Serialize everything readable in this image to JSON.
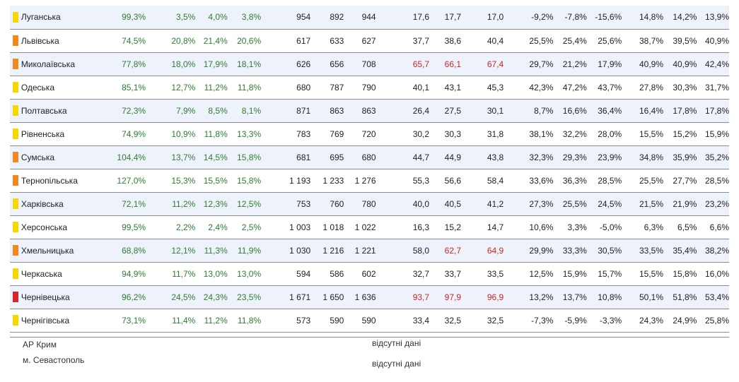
{
  "colors": {
    "yellow": "#f5d800",
    "orange": "#ef8a22",
    "red": "#d8232a"
  },
  "rows": [
    {
      "region": "Луганська",
      "ind": "yellow",
      "c": [
        {
          "v": "99,3%",
          "t": "g"
        },
        {
          "v": "3,5%",
          "t": "g"
        },
        {
          "v": "4,0%",
          "t": "g"
        },
        {
          "v": "3,8%",
          "t": "g"
        },
        {
          "v": "954",
          "t": "k"
        },
        {
          "v": "892",
          "t": "k"
        },
        {
          "v": "944",
          "t": "k"
        },
        {
          "v": "17,6",
          "t": "k"
        },
        {
          "v": "17,7",
          "t": "k"
        },
        {
          "v": "17,0",
          "t": "k"
        },
        {
          "v": "-9,2%",
          "t": "k"
        },
        {
          "v": "-7,8%",
          "t": "k"
        },
        {
          "v": "-15,6%",
          "t": "k"
        },
        {
          "v": "14,8%",
          "t": "k"
        },
        {
          "v": "14,2%",
          "t": "k"
        },
        {
          "v": "13,9%",
          "t": "k"
        }
      ]
    },
    {
      "region": "Львівська",
      "ind": "orange",
      "c": [
        {
          "v": "74,5%",
          "t": "g"
        },
        {
          "v": "20,8%",
          "t": "g"
        },
        {
          "v": "21,4%",
          "t": "g"
        },
        {
          "v": "20,6%",
          "t": "g"
        },
        {
          "v": "617",
          "t": "k"
        },
        {
          "v": "633",
          "t": "k"
        },
        {
          "v": "627",
          "t": "k"
        },
        {
          "v": "37,7",
          "t": "k"
        },
        {
          "v": "38,6",
          "t": "k"
        },
        {
          "v": "40,4",
          "t": "k"
        },
        {
          "v": "25,5%",
          "t": "k"
        },
        {
          "v": "25,4%",
          "t": "k"
        },
        {
          "v": "25,6%",
          "t": "k"
        },
        {
          "v": "38,7%",
          "t": "k"
        },
        {
          "v": "39,5%",
          "t": "k"
        },
        {
          "v": "40,9%",
          "t": "k"
        }
      ]
    },
    {
      "region": "Миколаївська",
      "ind": "orange",
      "c": [
        {
          "v": "77,8%",
          "t": "g"
        },
        {
          "v": "18,0%",
          "t": "g"
        },
        {
          "v": "17,9%",
          "t": "g"
        },
        {
          "v": "18,1%",
          "t": "g"
        },
        {
          "v": "626",
          "t": "k"
        },
        {
          "v": "656",
          "t": "k"
        },
        {
          "v": "708",
          "t": "k"
        },
        {
          "v": "65,7",
          "t": "r"
        },
        {
          "v": "66,1",
          "t": "r"
        },
        {
          "v": "67,4",
          "t": "r"
        },
        {
          "v": "29,7%",
          "t": "k"
        },
        {
          "v": "21,2%",
          "t": "k"
        },
        {
          "v": "17,9%",
          "t": "k"
        },
        {
          "v": "40,9%",
          "t": "k"
        },
        {
          "v": "40,9%",
          "t": "k"
        },
        {
          "v": "42,4%",
          "t": "k"
        }
      ]
    },
    {
      "region": "Одеська",
      "ind": "yellow",
      "c": [
        {
          "v": "85,1%",
          "t": "g"
        },
        {
          "v": "12,7%",
          "t": "g"
        },
        {
          "v": "11,2%",
          "t": "g"
        },
        {
          "v": "11,8%",
          "t": "g"
        },
        {
          "v": "680",
          "t": "k"
        },
        {
          "v": "787",
          "t": "k"
        },
        {
          "v": "790",
          "t": "k"
        },
        {
          "v": "40,1",
          "t": "k"
        },
        {
          "v": "43,1",
          "t": "k"
        },
        {
          "v": "45,3",
          "t": "k"
        },
        {
          "v": "42,3%",
          "t": "k"
        },
        {
          "v": "47,2%",
          "t": "k"
        },
        {
          "v": "43,7%",
          "t": "k"
        },
        {
          "v": "27,8%",
          "t": "k"
        },
        {
          "v": "30,3%",
          "t": "k"
        },
        {
          "v": "31,7%",
          "t": "k"
        }
      ]
    },
    {
      "region": "Полтавська",
      "ind": "yellow",
      "c": [
        {
          "v": "72,3%",
          "t": "g"
        },
        {
          "v": "7,9%",
          "t": "g"
        },
        {
          "v": "8,5%",
          "t": "g"
        },
        {
          "v": "8,1%",
          "t": "g"
        },
        {
          "v": "871",
          "t": "k"
        },
        {
          "v": "863",
          "t": "k"
        },
        {
          "v": "863",
          "t": "k"
        },
        {
          "v": "26,4",
          "t": "k"
        },
        {
          "v": "27,5",
          "t": "k"
        },
        {
          "v": "30,1",
          "t": "k"
        },
        {
          "v": "8,7%",
          "t": "k"
        },
        {
          "v": "16,6%",
          "t": "k"
        },
        {
          "v": "36,4%",
          "t": "k"
        },
        {
          "v": "16,4%",
          "t": "k"
        },
        {
          "v": "17,8%",
          "t": "k"
        },
        {
          "v": "17,8%",
          "t": "k"
        }
      ]
    },
    {
      "region": "Рівненська",
      "ind": "yellow",
      "c": [
        {
          "v": "74,9%",
          "t": "g"
        },
        {
          "v": "10,9%",
          "t": "g"
        },
        {
          "v": "11,8%",
          "t": "g"
        },
        {
          "v": "13,3%",
          "t": "g"
        },
        {
          "v": "783",
          "t": "k"
        },
        {
          "v": "769",
          "t": "k"
        },
        {
          "v": "720",
          "t": "k"
        },
        {
          "v": "30,2",
          "t": "k"
        },
        {
          "v": "30,3",
          "t": "k"
        },
        {
          "v": "31,8",
          "t": "k"
        },
        {
          "v": "38,1%",
          "t": "k"
        },
        {
          "v": "32,2%",
          "t": "k"
        },
        {
          "v": "28,0%",
          "t": "k"
        },
        {
          "v": "15,5%",
          "t": "k"
        },
        {
          "v": "15,2%",
          "t": "k"
        },
        {
          "v": "15,9%",
          "t": "k"
        }
      ]
    },
    {
      "region": "Сумська",
      "ind": "orange",
      "c": [
        {
          "v": "104,4%",
          "t": "g"
        },
        {
          "v": "13,7%",
          "t": "g"
        },
        {
          "v": "14,5%",
          "t": "g"
        },
        {
          "v": "15,8%",
          "t": "g"
        },
        {
          "v": "681",
          "t": "k"
        },
        {
          "v": "695",
          "t": "k"
        },
        {
          "v": "680",
          "t": "k"
        },
        {
          "v": "44,7",
          "t": "k"
        },
        {
          "v": "44,9",
          "t": "k"
        },
        {
          "v": "43,8",
          "t": "k"
        },
        {
          "v": "32,3%",
          "t": "k"
        },
        {
          "v": "29,3%",
          "t": "k"
        },
        {
          "v": "23,9%",
          "t": "k"
        },
        {
          "v": "34,8%",
          "t": "k"
        },
        {
          "v": "35,9%",
          "t": "k"
        },
        {
          "v": "35,2%",
          "t": "k"
        }
      ]
    },
    {
      "region": "Тернопільська",
      "ind": "orange",
      "c": [
        {
          "v": "127,0%",
          "t": "g"
        },
        {
          "v": "15,3%",
          "t": "g"
        },
        {
          "v": "15,5%",
          "t": "g"
        },
        {
          "v": "15,8%",
          "t": "g"
        },
        {
          "v": "1 193",
          "t": "k"
        },
        {
          "v": "1 233",
          "t": "k"
        },
        {
          "v": "1 276",
          "t": "k"
        },
        {
          "v": "55,3",
          "t": "k"
        },
        {
          "v": "56,6",
          "t": "k"
        },
        {
          "v": "58,4",
          "t": "k"
        },
        {
          "v": "33,6%",
          "t": "k"
        },
        {
          "v": "36,3%",
          "t": "k"
        },
        {
          "v": "28,5%",
          "t": "k"
        },
        {
          "v": "25,5%",
          "t": "k"
        },
        {
          "v": "27,7%",
          "t": "k"
        },
        {
          "v": "28,5%",
          "t": "k"
        }
      ]
    },
    {
      "region": "Харківська",
      "ind": "yellow",
      "c": [
        {
          "v": "72,1%",
          "t": "g"
        },
        {
          "v": "11,2%",
          "t": "g"
        },
        {
          "v": "12,3%",
          "t": "g"
        },
        {
          "v": "12,5%",
          "t": "g"
        },
        {
          "v": "753",
          "t": "k"
        },
        {
          "v": "760",
          "t": "k"
        },
        {
          "v": "780",
          "t": "k"
        },
        {
          "v": "40,0",
          "t": "k"
        },
        {
          "v": "40,5",
          "t": "k"
        },
        {
          "v": "41,2",
          "t": "k"
        },
        {
          "v": "27,3%",
          "t": "k"
        },
        {
          "v": "25,5%",
          "t": "k"
        },
        {
          "v": "24,5%",
          "t": "k"
        },
        {
          "v": "21,5%",
          "t": "k"
        },
        {
          "v": "21,9%",
          "t": "k"
        },
        {
          "v": "23,2%",
          "t": "k"
        }
      ]
    },
    {
      "region": "Херсонська",
      "ind": "yellow",
      "c": [
        {
          "v": "99,5%",
          "t": "g"
        },
        {
          "v": "2,2%",
          "t": "g"
        },
        {
          "v": "2,4%",
          "t": "g"
        },
        {
          "v": "2,5%",
          "t": "g"
        },
        {
          "v": "1 003",
          "t": "k"
        },
        {
          "v": "1 018",
          "t": "k"
        },
        {
          "v": "1 022",
          "t": "k"
        },
        {
          "v": "16,3",
          "t": "k"
        },
        {
          "v": "15,2",
          "t": "k"
        },
        {
          "v": "14,7",
          "t": "k"
        },
        {
          "v": "10,6%",
          "t": "k"
        },
        {
          "v": "3,3%",
          "t": "k"
        },
        {
          "v": "-5,0%",
          "t": "k"
        },
        {
          "v": "6,3%",
          "t": "k"
        },
        {
          "v": "6,5%",
          "t": "k"
        },
        {
          "v": "6,6%",
          "t": "k"
        }
      ]
    },
    {
      "region": "Хмельницька",
      "ind": "orange",
      "c": [
        {
          "v": "68,8%",
          "t": "g"
        },
        {
          "v": "12,1%",
          "t": "g"
        },
        {
          "v": "11,3%",
          "t": "g"
        },
        {
          "v": "11,9%",
          "t": "g"
        },
        {
          "v": "1 030",
          "t": "k"
        },
        {
          "v": "1 216",
          "t": "k"
        },
        {
          "v": "1 221",
          "t": "k"
        },
        {
          "v": "58,0",
          "t": "k"
        },
        {
          "v": "62,7",
          "t": "r"
        },
        {
          "v": "64,9",
          "t": "r"
        },
        {
          "v": "29,9%",
          "t": "k"
        },
        {
          "v": "33,3%",
          "t": "k"
        },
        {
          "v": "30,5%",
          "t": "k"
        },
        {
          "v": "33,5%",
          "t": "k"
        },
        {
          "v": "35,4%",
          "t": "k"
        },
        {
          "v": "38,2%",
          "t": "k"
        }
      ]
    },
    {
      "region": "Черкаська",
      "ind": "yellow",
      "c": [
        {
          "v": "94,9%",
          "t": "g"
        },
        {
          "v": "11,7%",
          "t": "g"
        },
        {
          "v": "13,0%",
          "t": "g"
        },
        {
          "v": "13,0%",
          "t": "g"
        },
        {
          "v": "594",
          "t": "k"
        },
        {
          "v": "586",
          "t": "k"
        },
        {
          "v": "602",
          "t": "k"
        },
        {
          "v": "32,7",
          "t": "k"
        },
        {
          "v": "33,7",
          "t": "k"
        },
        {
          "v": "33,5",
          "t": "k"
        },
        {
          "v": "12,5%",
          "t": "k"
        },
        {
          "v": "15,9%",
          "t": "k"
        },
        {
          "v": "15,7%",
          "t": "k"
        },
        {
          "v": "15,5%",
          "t": "k"
        },
        {
          "v": "15,8%",
          "t": "k"
        },
        {
          "v": "16,0%",
          "t": "k"
        }
      ]
    },
    {
      "region": "Чернівецька",
      "ind": "red",
      "c": [
        {
          "v": "96,2%",
          "t": "g"
        },
        {
          "v": "24,5%",
          "t": "g"
        },
        {
          "v": "24,3%",
          "t": "g"
        },
        {
          "v": "23,5%",
          "t": "g"
        },
        {
          "v": "1 671",
          "t": "k"
        },
        {
          "v": "1 650",
          "t": "k"
        },
        {
          "v": "1 636",
          "t": "k"
        },
        {
          "v": "93,7",
          "t": "r"
        },
        {
          "v": "97,9",
          "t": "r"
        },
        {
          "v": "96,9",
          "t": "r"
        },
        {
          "v": "13,2%",
          "t": "k"
        },
        {
          "v": "13,7%",
          "t": "k"
        },
        {
          "v": "10,8%",
          "t": "k"
        },
        {
          "v": "50,1%",
          "t": "k"
        },
        {
          "v": "51,8%",
          "t": "k"
        },
        {
          "v": "53,4%",
          "t": "k"
        }
      ]
    },
    {
      "region": "Чернігівська",
      "ind": "yellow",
      "c": [
        {
          "v": "73,1%",
          "t": "g"
        },
        {
          "v": "11,4%",
          "t": "g"
        },
        {
          "v": "11,2%",
          "t": "g"
        },
        {
          "v": "11,8%",
          "t": "g"
        },
        {
          "v": "573",
          "t": "k"
        },
        {
          "v": "590",
          "t": "k"
        },
        {
          "v": "590",
          "t": "k"
        },
        {
          "v": "33,4",
          "t": "k"
        },
        {
          "v": "32,5",
          "t": "k"
        },
        {
          "v": "32,5",
          "t": "k"
        },
        {
          "v": "-7,3%",
          "t": "k"
        },
        {
          "v": "-5,9%",
          "t": "k"
        },
        {
          "v": "-3,3%",
          "t": "k"
        },
        {
          "v": "24,3%",
          "t": "k"
        },
        {
          "v": "24,9%",
          "t": "k"
        },
        {
          "v": "25,8%",
          "t": "k"
        }
      ]
    }
  ],
  "footer": {
    "crimea": "АР Крим",
    "crimea_status": "відсутні дані",
    "sevastopol": "м. Севастополь",
    "sevastopol_status": "відсутні дані"
  }
}
